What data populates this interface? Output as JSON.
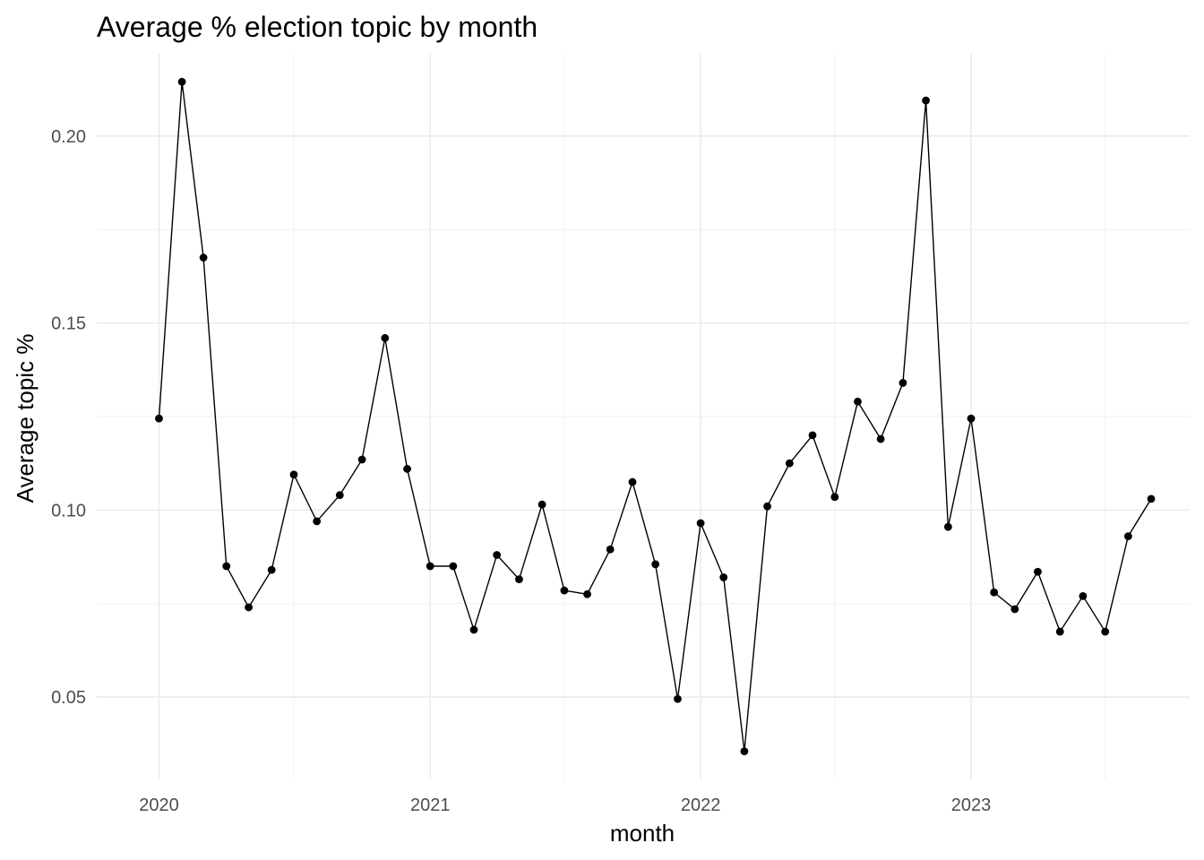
{
  "chart_data": {
    "type": "line",
    "title": "Average % election topic by month",
    "xlabel": "month",
    "ylabel": "Average topic %",
    "x_ticks": [
      "2020",
      "2021",
      "2022",
      "2023"
    ],
    "y_ticks": [
      "0.05",
      "0.10",
      "0.15",
      "0.20"
    ],
    "ylim": [
      0.028,
      0.222
    ],
    "xlim": [
      "2019-10-09",
      "2023-10-23"
    ],
    "grid": true,
    "x": [
      "2020-01",
      "2020-02",
      "2020-03",
      "2020-04",
      "2020-05",
      "2020-06",
      "2020-07",
      "2020-08",
      "2020-09",
      "2020-10",
      "2020-11",
      "2020-12",
      "2021-01",
      "2021-02",
      "2021-03",
      "2021-04",
      "2021-05",
      "2021-06",
      "2021-07",
      "2021-08",
      "2021-09",
      "2021-10",
      "2021-11",
      "2021-12",
      "2022-01",
      "2022-02",
      "2022-03",
      "2022-04",
      "2022-05",
      "2022-06",
      "2022-07",
      "2022-08",
      "2022-09",
      "2022-10",
      "2022-11",
      "2022-12",
      "2023-01",
      "2023-02",
      "2023-03",
      "2023-04",
      "2023-05",
      "2023-06",
      "2023-07",
      "2023-08",
      "2023-09"
    ],
    "series": [
      {
        "color": "#000000",
        "values": [
          0.1245,
          0.2145,
          0.1675,
          0.085,
          0.074,
          0.084,
          0.1095,
          0.097,
          0.104,
          0.1135,
          0.146,
          0.111,
          0.085,
          0.085,
          0.068,
          0.088,
          0.0815,
          0.1015,
          0.0785,
          0.0775,
          0.0895,
          0.1075,
          0.0855,
          0.0495,
          0.0965,
          0.082,
          0.0355,
          0.101,
          0.1125,
          0.12,
          0.1035,
          0.129,
          0.119,
          0.134,
          0.2095,
          0.0955,
          0.1245,
          0.078,
          0.0735,
          0.0835,
          0.0675,
          0.077,
          0.0675,
          0.093,
          0.103
        ]
      }
    ]
  }
}
